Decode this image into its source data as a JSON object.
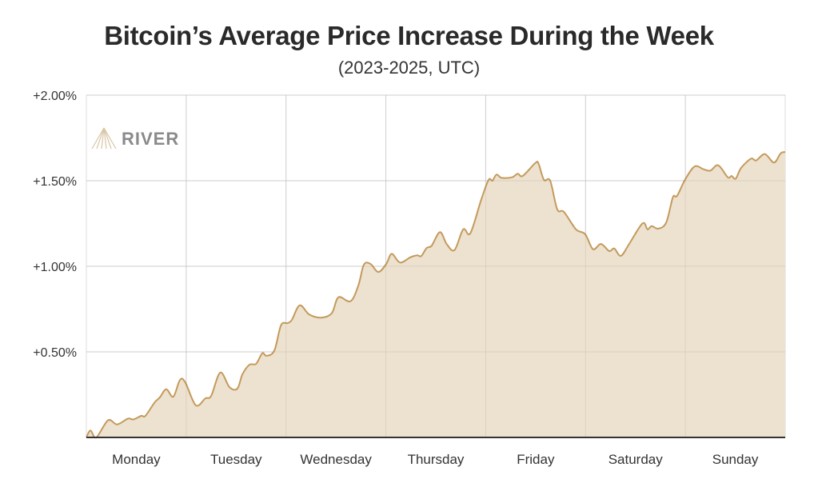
{
  "chart_data": {
    "type": "area",
    "title": "Bitcoin’s Average Price Increase During the Week",
    "subtitle": "(2023-2025, UTC)",
    "xlabel": "",
    "ylabel": "",
    "x_unit": "hours since Monday 00:00 UTC",
    "xlim": [
      0,
      168
    ],
    "ylim": [
      0,
      2.0
    ],
    "y_ticks": [
      {
        "value": 0.5,
        "label": "+0.50%"
      },
      {
        "value": 1.0,
        "label": "+1.00%"
      },
      {
        "value": 1.5,
        "label": "+1.50%"
      },
      {
        "value": 2.0,
        "label": "+2.00%"
      }
    ],
    "x_categories": [
      "Monday",
      "Tuesday",
      "Wednesday",
      "Thursday",
      "Friday",
      "Saturday",
      "Sunday"
    ],
    "grid": true,
    "colors": {
      "line": "#c49a5c",
      "fill": "#ede1cf",
      "grid": "#dedede",
      "axis": "#333333"
    },
    "watermark": "RIVER",
    "series": [
      {
        "x": [
          0,
          1.0,
          2.4,
          5.2,
          7.4,
          10.0,
          11.3,
          13.2,
          14.2,
          16.4,
          17.7,
          19.2,
          20.9,
          22.5,
          23.8,
          26.3,
          28.6,
          30.0,
          32.2,
          34.4,
          36.3,
          37.5,
          39.2,
          40.8,
          42.3,
          43.3,
          45.2,
          46.8,
          48.4,
          49.4,
          51.3,
          53.6,
          56.5,
          59.0,
          60.6,
          63.5,
          65.4,
          66.7,
          68.3,
          70.2,
          72.1,
          73.4,
          75.4,
          77.9,
          79.5,
          80.5,
          81.8,
          83.0,
          85.0,
          86.6,
          88.5,
          90.6,
          92.3,
          94.9,
          96.7,
          97.6,
          98.6,
          99.8,
          102.3,
          103.7,
          104.9,
          107.9,
          108.7,
          110.0,
          111.5,
          113.2,
          114.8,
          117.7,
          119.9,
          121.8,
          123.7,
          125.7,
          126.9,
          128.5,
          130.5,
          133.7,
          134.9,
          135.9,
          137.5,
          139.4,
          141.0,
          142.0,
          143.9,
          146.2,
          148.4,
          150.0,
          151.9,
          154.2,
          155.1,
          156.1,
          157.4,
          159.8,
          161.0,
          163.1,
          165.3,
          166.9,
          168.0
        ],
        "y": [
          0,
          0.04,
          0.0,
          0.1,
          0.076,
          0.11,
          0.105,
          0.126,
          0.126,
          0.204,
          0.235,
          0.282,
          0.238,
          0.336,
          0.321,
          0.188,
          0.228,
          0.243,
          0.379,
          0.294,
          0.285,
          0.368,
          0.425,
          0.43,
          0.492,
          0.477,
          0.508,
          0.656,
          0.668,
          0.687,
          0.772,
          0.718,
          0.7,
          0.726,
          0.819,
          0.796,
          0.889,
          1.009,
          1.014,
          0.967,
          1.014,
          1.073,
          1.022,
          1.053,
          1.064,
          1.06,
          1.107,
          1.12,
          1.2,
          1.131,
          1.095,
          1.216,
          1.193,
          1.388,
          1.505,
          1.5,
          1.536,
          1.517,
          1.52,
          1.541,
          1.528,
          1.603,
          1.6,
          1.505,
          1.5,
          1.333,
          1.318,
          1.216,
          1.188,
          1.1,
          1.131,
          1.089,
          1.104,
          1.061,
          1.131,
          1.251,
          1.216,
          1.235,
          1.22,
          1.256,
          1.403,
          1.411,
          1.505,
          1.583,
          1.567,
          1.559,
          1.59,
          1.52,
          1.528,
          1.512,
          1.575,
          1.629,
          1.618,
          1.656,
          1.606,
          1.66,
          1.668
        ]
      }
    ]
  }
}
